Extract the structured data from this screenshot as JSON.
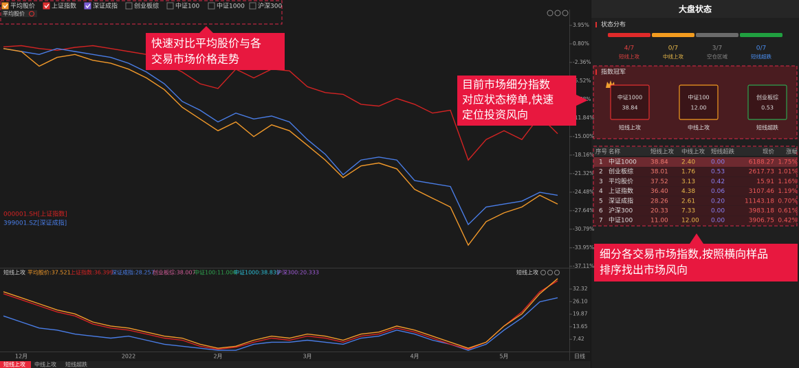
{
  "legend": {
    "items": [
      {
        "name": "平均股价",
        "checked": true,
        "color": "#f0932b"
      },
      {
        "name": "上证指数",
        "checked": true,
        "color": "#e03030"
      },
      {
        "name": "深证成指",
        "checked": true,
        "color": "#7d5fd6"
      },
      {
        "name": "创业板综",
        "checked": false,
        "color": "#888888"
      },
      {
        "name": "中证100",
        "checked": false,
        "color": "#888888"
      },
      {
        "name": "中证1000",
        "checked": false,
        "color": "#888888"
      },
      {
        "name": "沪深300",
        "checked": false,
        "color": "#888888"
      }
    ],
    "dropdown": "平均股价"
  },
  "main_chart": {
    "type": "line",
    "ylim": [
      -37.36,
      6.64
    ],
    "yticks": [
      {
        "value": 3.95,
        "label": "3.95%"
      },
      {
        "value": 0.8,
        "label": "0.80%"
      },
      {
        "value": -2.36,
        "label": "-2.36%"
      },
      {
        "value": -5.52,
        "label": "-5.52%"
      },
      {
        "value": -8.68,
        "label": "-8.68%"
      },
      {
        "value": -11.84,
        "label": "-11.84%"
      },
      {
        "value": -15.0,
        "label": "-15.00%"
      },
      {
        "value": -18.16,
        "label": "-18.16%"
      },
      {
        "value": -21.32,
        "label": "-21.32%"
      },
      {
        "value": -24.48,
        "label": "-24.48%"
      },
      {
        "value": -27.64,
        "label": "-27.64%"
      },
      {
        "value": -30.79,
        "label": "-30.79%"
      },
      {
        "value": -33.95,
        "label": "-33.95%"
      },
      {
        "value": -37.11,
        "label": "-37.11%"
      }
    ],
    "series": [
      {
        "name": "上证指数",
        "color": "#d42323",
        "values": [
          0.3,
          0.5,
          0.0,
          -0.3,
          0.2,
          0.5,
          0.0,
          -0.5,
          -1.0,
          -2.5,
          -4.0,
          -6.0,
          -6.8,
          -3.5,
          -5.0,
          -3.5,
          -3.8,
          -6.5,
          -7.5,
          -7.8,
          -9.5,
          -9.8,
          -8.5,
          -9.5,
          -11.0,
          -10.5,
          -19.0,
          -15.5,
          -14.0,
          -15.5,
          -11.5,
          -14.5
        ]
      },
      {
        "name": "深证成指",
        "color": "#4a7ee8",
        "values": [
          0.0,
          -0.5,
          -1.0,
          0.0,
          -0.5,
          -1.0,
          -1.5,
          -2.5,
          -4.0,
          -6.0,
          -9.0,
          -10.5,
          -12.5,
          -11.0,
          -12.0,
          -11.5,
          -12.5,
          -15.5,
          -18.0,
          -21.5,
          -19.0,
          -18.5,
          -19.0,
          -22.5,
          -23.0,
          -23.5,
          -30.0,
          -27.0,
          -26.5,
          -26.0,
          -24.5,
          -25.0
        ]
      },
      {
        "name": "平均股价",
        "color": "#f39a2a",
        "values": [
          0.0,
          -0.5,
          -3.0,
          -1.5,
          -1.0,
          -2.0,
          -2.5,
          -3.5,
          -5.0,
          -7.0,
          -10.0,
          -12.0,
          -14.0,
          -12.5,
          -15.0,
          -13.0,
          -14.0,
          -16.5,
          -19.0,
          -22.0,
          -20.0,
          -19.5,
          -20.5,
          -24.0,
          -25.5,
          -27.0,
          -33.5,
          -29.5,
          -28.0,
          -27.0,
          -25.0,
          -26.5
        ]
      }
    ],
    "code_labels": [
      {
        "text": "000001.SH[上证指数]",
        "color": "#d42323"
      },
      {
        "text": "399001.SZ[深证成指]",
        "color": "#4a7ee8"
      }
    ]
  },
  "sub_chart": {
    "type": "line",
    "title": "短线上攻",
    "indicator": "短线上攻",
    "legend": [
      {
        "text": "平均股价:37.521",
        "color": "#f39a2a"
      },
      {
        "text": "上证指数:36.399",
        "color": "#d42323"
      },
      {
        "text": "深证成指:28.257",
        "color": "#4a7ee8"
      },
      {
        "text": "创业板综:38.007",
        "color": "#d45d9a"
      },
      {
        "text": "中证100:11.000",
        "color": "#2ea44f"
      },
      {
        "text": "中证1000:38.839",
        "color": "#2bc0d8"
      },
      {
        "text": "沪深300:20.333",
        "color": "#a05cd8"
      }
    ],
    "ylim": [
      1.38,
      39.46
    ],
    "yticks": [
      {
        "value": 32.32,
        "label": "32.32"
      },
      {
        "value": 26.1,
        "label": "26.10"
      },
      {
        "value": 19.87,
        "label": "19.87"
      },
      {
        "value": 13.65,
        "label": "13.65"
      },
      {
        "value": 7.42,
        "label": "7.42"
      }
    ],
    "series": [
      {
        "name": "深证成指",
        "color": "#4a7ee8",
        "values": [
          19,
          16,
          13,
          12,
          10,
          9,
          8,
          9,
          7,
          5,
          4,
          3,
          2,
          2,
          5,
          6,
          6,
          7,
          6,
          5,
          8,
          9,
          12,
          10,
          7,
          5,
          2,
          5,
          12,
          18,
          26,
          28
        ]
      },
      {
        "name": "上证指数",
        "color": "#d42323",
        "values": [
          30,
          27,
          24,
          21,
          19,
          15,
          13,
          12,
          10,
          8,
          7,
          4,
          2.5,
          3.5,
          6,
          8,
          7,
          9,
          8,
          6,
          9,
          10,
          13,
          11,
          8,
          5,
          2.5,
          6,
          14,
          21,
          31,
          36.4
        ]
      },
      {
        "name": "平均股价",
        "color": "#f39a2a",
        "values": [
          31,
          28,
          25,
          22,
          20,
          16,
          14,
          13,
          11,
          9,
          8,
          5,
          3,
          4,
          7,
          9,
          8,
          10,
          9,
          7,
          10,
          11,
          14,
          12,
          9,
          6,
          3,
          6,
          14,
          20,
          30,
          37.5
        ]
      }
    ]
  },
  "x_axis": {
    "categories": [
      null,
      "12月",
      null,
      null,
      null,
      null,
      null,
      "2022",
      null,
      null,
      null,
      null,
      "2月",
      null,
      null,
      null,
      null,
      "3月",
      null,
      null,
      null,
      null,
      null,
      "4月",
      null,
      null,
      null,
      null,
      "5月",
      null,
      null,
      null
    ],
    "period": "日线"
  },
  "tabs": {
    "items": [
      "短线上攻",
      "中线上攻",
      "短线超跌"
    ],
    "active": 0
  },
  "panel": {
    "title": "大盘状态",
    "status": {
      "title": "状态分布",
      "items": [
        {
          "count": "4/7",
          "label": "短线上攻",
          "color": "#e02a2a",
          "text_color": "#e04040"
        },
        {
          "count": "0/7",
          "label": "中线上攻",
          "color": "#f39c1f",
          "text_color": "#e8b84a"
        },
        {
          "count": "3/7",
          "label": "空仓区域",
          "color": "#6b6b6b",
          "text_color": "#8a8a8a"
        },
        {
          "count": "0/7",
          "label": "短线超跌",
          "color": "#20a040",
          "text_color": "#4a8ef0"
        }
      ]
    },
    "champions": {
      "title": "指数冠军",
      "cards": [
        {
          "name": "中证1000",
          "value": "38.84",
          "label": "短线上攻",
          "color": "#e03030"
        },
        {
          "name": "中证100",
          "value": "12.00",
          "label": "中线上攻",
          "color": "#f39c1f"
        },
        {
          "name": "创业板综",
          "value": "0.53",
          "label": "短线超跌",
          "color": "#2ea44f"
        }
      ]
    },
    "table": {
      "header": [
        "序号",
        "名称",
        "短线上攻",
        "中线上攻",
        "短线超跌",
        "现价",
        "涨幅"
      ],
      "rows": [
        [
          "1",
          "中证1000",
          "38.84",
          "2.40",
          "0.00",
          "6188.27",
          "1.75%"
        ],
        [
          "2",
          "创业板综",
          "38.01",
          "1.76",
          "0.53",
          "2617.73",
          "1.01%"
        ],
        [
          "3",
          "平均股价",
          "37.52",
          "3.13",
          "0.42",
          "15.91",
          "1.16%"
        ],
        [
          "4",
          "上证指数",
          "36.40",
          "4.38",
          "0.06",
          "3107.46",
          "1.19%"
        ],
        [
          "5",
          "深证成指",
          "28.26",
          "2.61",
          "0.20",
          "11143.18",
          "0.70%"
        ],
        [
          "6",
          "沪深300",
          "20.33",
          "7.33",
          "0.00",
          "3983.18",
          "0.61%"
        ],
        [
          "7",
          "中证100",
          "11.00",
          "12.00",
          "0.00",
          "3906.75",
          "0.42%"
        ]
      ]
    }
  },
  "annotations": [
    {
      "lines": [
        "快速对比平均股价与各",
        "交易市场价格走势"
      ]
    },
    {
      "lines": [
        "目前市场细分指数",
        "对应状态榜单,快速",
        "定位投资风向"
      ]
    },
    {
      "lines": [
        "细分各交易市场指数,按照横向样品",
        "排序找出市场风向"
      ]
    }
  ]
}
